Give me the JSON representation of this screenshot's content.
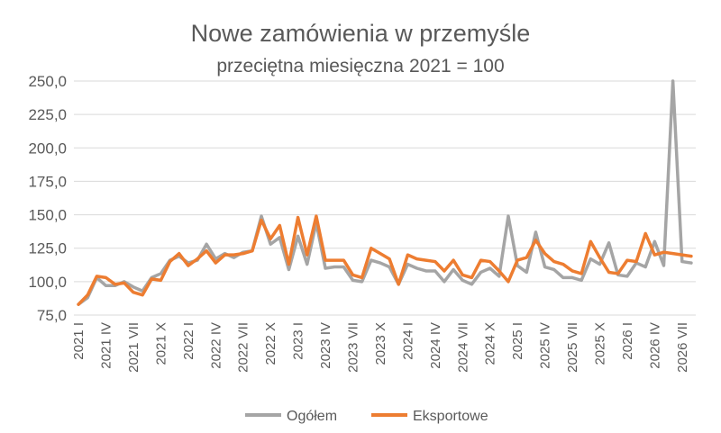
{
  "chart_data": {
    "type": "line",
    "title": "Nowe zamówienia w przemyśle",
    "subtitle": "przeciętna miesięczna 2021 = 100",
    "xlabel": "",
    "ylabel": "",
    "ylim": [
      75,
      250
    ],
    "yticks": [
      "75,0",
      "100,0",
      "125,0",
      "150,0",
      "175,0",
      "200,0",
      "225,0",
      "250,0"
    ],
    "ytick_values": [
      75,
      100,
      125,
      150,
      175,
      200,
      225,
      250
    ],
    "grid": true,
    "legend_position": "bottom",
    "x_tick_labels": [
      "2021 I",
      "2021 IV",
      "2021 VII",
      "2021 X",
      "2022 I",
      "2022 IV",
      "2022 VII",
      "2022 X",
      "2023 I",
      "2023 IV",
      "2023 VII",
      "2023 X",
      "2024 I",
      "2024 IV",
      "2024 VII",
      "2024 X",
      "2025 I",
      "2025 IV",
      "2025 VII",
      "2025 X",
      "2026 I",
      "2026 IV",
      "2026 VII"
    ],
    "x_tick_every": 3,
    "series": [
      {
        "name": "Ogółem",
        "color": "#a5a5a5",
        "values": [
          83,
          88,
          103,
          97,
          97,
          100,
          96,
          93,
          103,
          106,
          116,
          119,
          114,
          116,
          128,
          117,
          121,
          118,
          122,
          123,
          149,
          128,
          133,
          109,
          134,
          113,
          144,
          110,
          111,
          111,
          101,
          100,
          116,
          114,
          111,
          98,
          113,
          110,
          108,
          108,
          100,
          109,
          101,
          98,
          107,
          110,
          104,
          149,
          112,
          107,
          137,
          111,
          109,
          103,
          103,
          101,
          117,
          113,
          129,
          105,
          104,
          114,
          111,
          130,
          112,
          250,
          115,
          114
        ]
      },
      {
        "name": "Eksportowe",
        "color": "#ed7d31",
        "values": [
          83,
          90,
          104,
          103,
          98,
          99,
          92,
          90,
          102,
          101,
          115,
          121,
          112,
          117,
          123,
          114,
          120,
          120,
          121,
          123,
          146,
          132,
          142,
          113,
          148,
          120,
          149,
          116,
          116,
          116,
          105,
          103,
          125,
          121,
          117,
          98,
          120,
          117,
          116,
          115,
          108,
          116,
          105,
          103,
          116,
          115,
          108,
          100,
          116,
          118,
          131,
          121,
          115,
          113,
          108,
          106,
          130,
          118,
          107,
          106,
          116,
          115,
          136,
          120,
          122,
          121,
          120,
          119
        ]
      }
    ]
  }
}
